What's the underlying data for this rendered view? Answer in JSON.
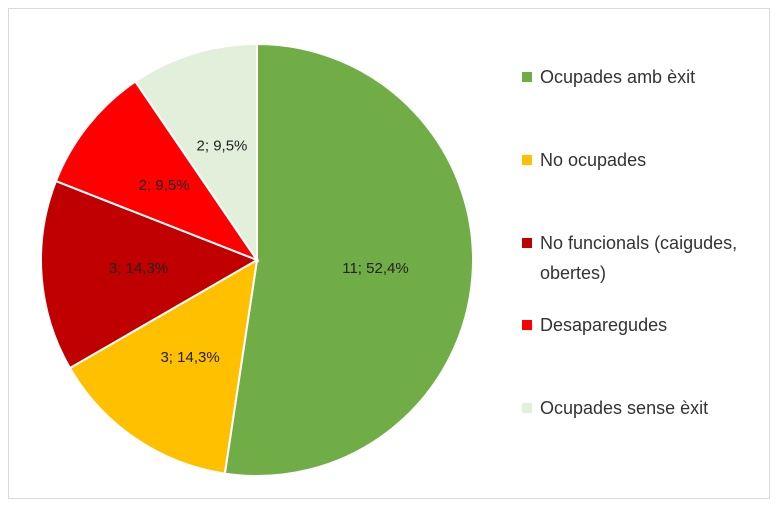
{
  "chart_data": {
    "type": "pie",
    "categories": [
      "Ocupades amb èxit",
      "No ocupades",
      "No funcionals (caigudes, obertes)",
      "Desaparegudes",
      "Ocupades sense èxit"
    ],
    "values": [
      11,
      3,
      3,
      2,
      2
    ],
    "value_labels": [
      "11; 52,4%",
      "3; 14,3%",
      "3; 14,3%",
      "2; 9,5%",
      "2; 9,5%"
    ],
    "colors": [
      "#70ad47",
      "#ffc000",
      "#c00000",
      "#ff0000",
      "#e2efda"
    ],
    "legend": "right"
  }
}
